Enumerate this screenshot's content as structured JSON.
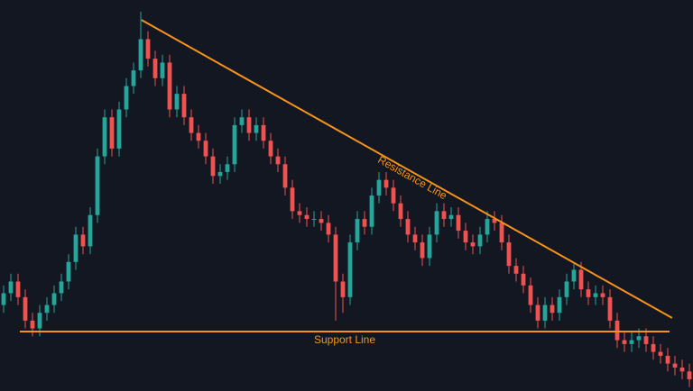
{
  "chart_data": {
    "type": "candlestick",
    "x": [
      0,
      1,
      2,
      3,
      4,
      5,
      6,
      7,
      8,
      9,
      10,
      11,
      12,
      13,
      14,
      15,
      16,
      17,
      18,
      19,
      20,
      21,
      22,
      23,
      24,
      25,
      26,
      27,
      28,
      29,
      30,
      31,
      32,
      33,
      34,
      35,
      36,
      37,
      38,
      39,
      40,
      41,
      42,
      43,
      44,
      45,
      46,
      47,
      48,
      49,
      50,
      51,
      52,
      53,
      54,
      55,
      56,
      57,
      58,
      59,
      60,
      61,
      62,
      63,
      64,
      65,
      66,
      67,
      68,
      69,
      70,
      71,
      72,
      73,
      74,
      75,
      76,
      77,
      78,
      79,
      80,
      81,
      82,
      83,
      84,
      85,
      86,
      87,
      88,
      89,
      90,
      91,
      92,
      93,
      94,
      95
    ],
    "open": [
      22,
      25,
      28,
      24,
      18,
      16,
      20,
      22,
      25,
      28,
      33,
      40,
      37,
      45,
      60,
      70,
      62,
      72,
      78,
      82,
      90,
      85,
      80,
      84,
      72,
      76,
      70,
      66,
      64,
      60,
      55,
      56,
      58,
      68,
      70,
      66,
      68,
      64,
      60,
      58,
      52,
      46,
      45,
      44,
      44,
      43,
      40,
      28,
      24,
      38,
      44,
      42,
      50,
      54,
      52,
      48,
      44,
      40,
      38,
      34,
      40,
      46,
      44,
      45,
      41,
      38,
      37,
      40,
      44,
      43,
      38,
      32,
      30,
      27,
      22,
      18,
      22,
      20,
      24,
      28,
      31,
      26,
      24,
      25,
      24,
      18,
      13,
      12,
      13,
      14,
      12,
      10,
      9,
      7,
      6,
      5
    ],
    "high": [
      27,
      30,
      30,
      26,
      20,
      22,
      24,
      27,
      30,
      35,
      42,
      42,
      47,
      62,
      72,
      72,
      74,
      80,
      84,
      97,
      92,
      87,
      86,
      86,
      78,
      78,
      72,
      68,
      66,
      62,
      58,
      60,
      70,
      72,
      72,
      70,
      70,
      66,
      62,
      60,
      54,
      48,
      47,
      46,
      46,
      45,
      42,
      30,
      40,
      46,
      46,
      52,
      56,
      56,
      54,
      50,
      46,
      42,
      40,
      42,
      48,
      48,
      47,
      47,
      43,
      40,
      42,
      46,
      46,
      45,
      40,
      34,
      32,
      29,
      24,
      24,
      24,
      26,
      30,
      33,
      33,
      28,
      27,
      27,
      26,
      20,
      15,
      15,
      16,
      16,
      14,
      12,
      11,
      9,
      8,
      7
    ],
    "low": [
      20,
      23,
      22,
      16,
      14,
      14,
      18,
      20,
      23,
      26,
      31,
      35,
      35,
      43,
      58,
      60,
      60,
      70,
      76,
      80,
      83,
      78,
      78,
      70,
      70,
      68,
      64,
      62,
      58,
      53,
      53,
      54,
      56,
      66,
      64,
      64,
      62,
      58,
      56,
      50,
      44,
      43,
      42,
      42,
      41,
      38,
      18,
      20,
      22,
      36,
      40,
      40,
      48,
      50,
      46,
      42,
      38,
      36,
      32,
      32,
      38,
      42,
      42,
      39,
      36,
      35,
      35,
      38,
      41,
      36,
      30,
      28,
      25,
      20,
      16,
      16,
      18,
      18,
      22,
      26,
      24,
      22,
      22,
      22,
      16,
      11,
      10,
      10,
      11,
      10,
      8,
      7,
      5,
      4,
      3,
      1
    ],
    "close": [
      25,
      28,
      24,
      18,
      16,
      20,
      22,
      25,
      28,
      33,
      40,
      37,
      45,
      60,
      70,
      62,
      72,
      78,
      82,
      90,
      85,
      80,
      84,
      72,
      76,
      70,
      66,
      64,
      60,
      55,
      56,
      58,
      68,
      70,
      66,
      68,
      64,
      60,
      58,
      52,
      46,
      45,
      44,
      44,
      43,
      40,
      28,
      24,
      38,
      44,
      42,
      50,
      54,
      52,
      48,
      44,
      40,
      38,
      34,
      40,
      46,
      44,
      45,
      41,
      38,
      37,
      40,
      44,
      43,
      38,
      32,
      30,
      27,
      22,
      18,
      22,
      20,
      24,
      28,
      31,
      26,
      24,
      25,
      24,
      18,
      13,
      12,
      13,
      14,
      12,
      10,
      9,
      7,
      6,
      5,
      3
    ],
    "up_color": "#26a69a",
    "down_color": "#ef5350",
    "xlim": [
      -0.5,
      95.5
    ],
    "ylim": [
      0,
      100
    ],
    "lines": [
      {
        "name": "Resistance Line",
        "x": [
          19.1,
          92.6
        ],
        "y": [
          94.9,
          18.7
        ],
        "color": "#f7931a"
      },
      {
        "name": "Support Line",
        "x": [
          2.25,
          92.25
        ],
        "y": [
          15.2,
          15.2
        ],
        "color": "#f7931a"
      }
    ]
  }
}
